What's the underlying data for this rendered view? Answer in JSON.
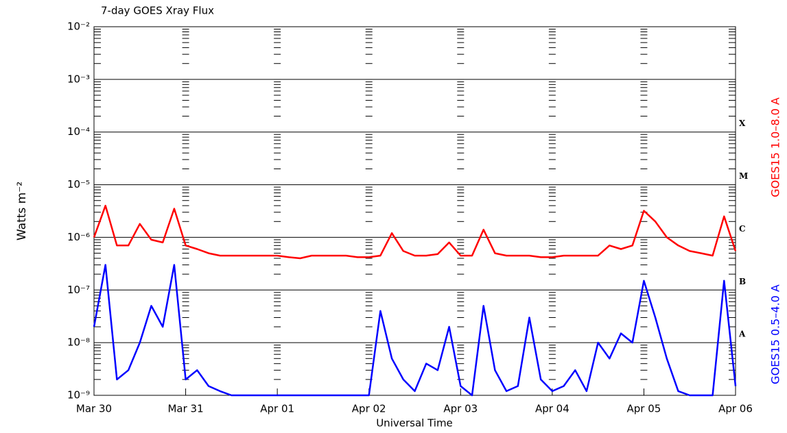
{
  "chart_data": {
    "type": "line",
    "title": "7-day GOES Xray Flux",
    "xlabel": "Universal Time",
    "ylabel": "Watts m⁻²",
    "log_y": true,
    "grid": true,
    "x": [
      0,
      0.125,
      0.25,
      0.375,
      0.5,
      0.625,
      0.75,
      0.875,
      1,
      1.125,
      1.25,
      1.375,
      1.5,
      1.625,
      1.75,
      1.875,
      2,
      2.125,
      2.25,
      2.375,
      2.5,
      2.625,
      2.75,
      2.875,
      3,
      3.125,
      3.25,
      3.375,
      3.5,
      3.625,
      3.75,
      3.875,
      4,
      4.125,
      4.25,
      4.375,
      4.5,
      4.625,
      4.75,
      4.875,
      5,
      5.125,
      5.25,
      5.375,
      5.5,
      5.625,
      5.75,
      5.875,
      6,
      6.125,
      6.25,
      6.375,
      6.5,
      6.625,
      6.75,
      6.875,
      7
    ],
    "series": [
      {
        "name": "GOES15 1.0–8.0 A",
        "color": "#ff0000",
        "values": [
          1e-06,
          4e-06,
          7e-07,
          7e-07,
          1.8e-06,
          9e-07,
          8e-07,
          3.5e-06,
          7e-07,
          6e-07,
          5e-07,
          4.5e-07,
          4.5e-07,
          4.5e-07,
          4.5e-07,
          4.5e-07,
          4.5e-07,
          4.2e-07,
          4e-07,
          4.5e-07,
          4.5e-07,
          4.5e-07,
          4.5e-07,
          4.2e-07,
          4.2e-07,
          4.5e-07,
          1.2e-06,
          5.5e-07,
          4.5e-07,
          4.5e-07,
          4.8e-07,
          8e-07,
          4.5e-07,
          4.5e-07,
          1.4e-06,
          5e-07,
          4.5e-07,
          4.5e-07,
          4.5e-07,
          4.2e-07,
          4.2e-07,
          4.5e-07,
          4.5e-07,
          4.5e-07,
          4.5e-07,
          7e-07,
          6e-07,
          7e-07,
          3.2e-06,
          2e-06,
          1e-06,
          7e-07,
          5.5e-07,
          5e-07,
          4.5e-07,
          2.5e-06,
          5.5e-07
        ]
      },
      {
        "name": "GOES15 0.5–4.0 A",
        "color": "#0000ff",
        "values": [
          2e-08,
          3e-07,
          2e-09,
          3e-09,
          1e-08,
          5e-08,
          2e-08,
          3e-07,
          2e-09,
          3e-09,
          1.5e-09,
          1.2e-09,
          1e-09,
          1e-09,
          1e-09,
          1e-09,
          1e-09,
          1e-09,
          1e-09,
          1e-09,
          1e-09,
          1e-09,
          1e-09,
          1e-09,
          1e-09,
          4e-08,
          5e-09,
          2e-09,
          1.2e-09,
          4e-09,
          3e-09,
          2e-08,
          1.5e-09,
          1e-09,
          5e-08,
          3e-09,
          1.2e-09,
          1.5e-09,
          3e-08,
          2e-09,
          1.2e-09,
          1.5e-09,
          3e-09,
          1.2e-09,
          1e-08,
          5e-09,
          1.5e-08,
          1e-08,
          1.5e-07,
          3e-08,
          5e-09,
          1.2e-09,
          1e-09,
          1e-09,
          1e-09,
          1.5e-07,
          1.5e-09
        ]
      }
    ],
    "xlim": [
      0,
      7
    ],
    "xticks": [
      {
        "value": 0,
        "label": "Mar 30"
      },
      {
        "value": 1,
        "label": "Mar 31"
      },
      {
        "value": 2,
        "label": "Apr 01"
      },
      {
        "value": 3,
        "label": "Apr 02"
      },
      {
        "value": 4,
        "label": "Apr 03"
      },
      {
        "value": 5,
        "label": "Apr 04"
      },
      {
        "value": 6,
        "label": "Apr 05"
      },
      {
        "value": 7,
        "label": "Apr 06"
      }
    ],
    "ylim": [
      1e-09,
      0.01
    ],
    "yticks": [
      {
        "value": 1e-09,
        "label": "10⁻⁹"
      },
      {
        "value": 1e-08,
        "label": "10⁻⁸"
      },
      {
        "value": 1e-07,
        "label": "10⁻⁷"
      },
      {
        "value": 1e-06,
        "label": "10⁻⁶"
      },
      {
        "value": 1e-05,
        "label": "10⁻⁵"
      },
      {
        "value": 0.0001,
        "label": "10⁻⁴"
      },
      {
        "value": 0.001,
        "label": "10⁻³"
      },
      {
        "value": 0.01,
        "label": "10⁻²"
      }
    ],
    "class_labels": [
      {
        "value": 0.0001,
        "label": "X"
      },
      {
        "value": 1e-05,
        "label": "M"
      },
      {
        "value": 1e-06,
        "label": "C"
      },
      {
        "value": 1e-07,
        "label": "B"
      },
      {
        "value": 1e-08,
        "label": "A"
      }
    ]
  }
}
